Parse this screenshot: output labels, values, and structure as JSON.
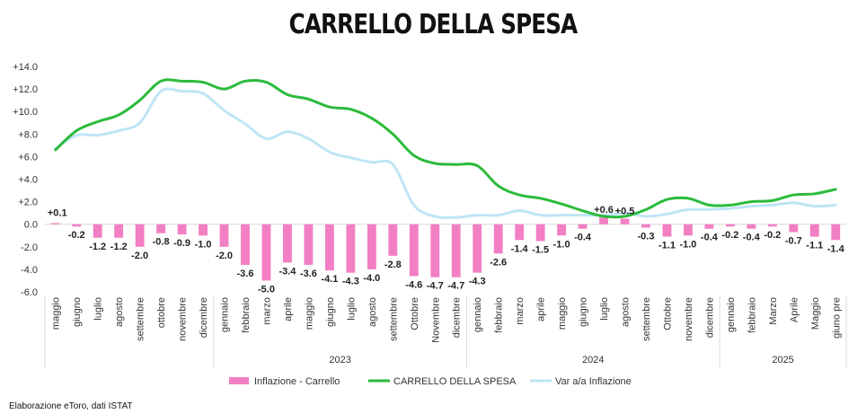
{
  "chart_data": {
    "type": "bar",
    "title": "CARRELLO DELLA SPESA",
    "categories": [
      "maggio",
      "giugno",
      "luglio",
      "agosto",
      "settembre",
      "ottobre",
      "novembre",
      "dicembre",
      "gennaio",
      "febbraio",
      "marzo",
      "aprile",
      "maggio",
      "giugno",
      "luglio",
      "agosto",
      "settembre",
      "Ottobre",
      "Novembre",
      "dicembre",
      "gennaio",
      "febbraio",
      "marzo",
      "aprile",
      "maggio",
      "giugno",
      "luglio",
      "agosto",
      "settembre",
      "Ottobre",
      "novembre",
      "dicembre",
      "gennaio",
      "febbraio",
      "Marzo",
      "Aprile",
      "Maggio",
      "giuno pre"
    ],
    "year_groups": [
      {
        "label": "",
        "start": 0,
        "end": 7
      },
      {
        "label": "2023",
        "start": 8,
        "end": 19
      },
      {
        "label": "2024",
        "start": 20,
        "end": 31
      },
      {
        "label": "2025",
        "start": 32,
        "end": 37
      }
    ],
    "ylim": [
      -6,
      14
    ],
    "yticks": [
      "+14.0",
      "+12.0",
      "+10.0",
      "+8.0",
      "+6.0",
      "+4.0",
      "+2.0",
      "0.0",
      "-2.0",
      "-4.0",
      "-6.0"
    ],
    "grid": false,
    "legend": "bottom",
    "series": [
      {
        "name": "Inflazione - Carrello",
        "kind": "bar",
        "color": "#f27fc4",
        "values": [
          0.1,
          -0.2,
          -1.2,
          -1.2,
          -2.0,
          -0.8,
          -0.9,
          -1.0,
          -2.0,
          -3.6,
          -5.0,
          -3.4,
          -3.6,
          -4.1,
          -4.3,
          -4.0,
          -2.8,
          -4.6,
          -4.7,
          -4.7,
          -4.3,
          -2.6,
          -1.4,
          -1.5,
          -1.0,
          -0.4,
          0.6,
          0.5,
          -0.3,
          -1.1,
          -1.0,
          -0.4,
          -0.2,
          -0.4,
          -0.2,
          -0.7,
          -1.1,
          -1.4
        ],
        "labels": [
          "+0.1",
          "-0.2",
          "-1.2",
          "-1.2",
          "-2.0",
          "-0.8",
          "-0.9",
          "-1.0",
          "-2.0",
          "-3.6",
          "-5.0",
          "-3.4",
          "-3.6",
          "-4.1",
          "-4.3",
          "-4.0",
          "-2.8",
          "-4.6",
          "-4.7",
          "-4.7",
          "-4.3",
          "-2.6",
          "-1.4",
          "-1.5",
          "-1.0",
          "-0.4",
          "+0.6",
          "+0.5",
          "-0.3",
          "-1.1",
          "-1.0",
          "-0.4",
          "-0.2",
          "-0.4",
          "-0.2",
          "-0.7",
          "-1.1",
          "-1.4"
        ]
      },
      {
        "name": "CARRELLO DELLA SPESA",
        "kind": "line",
        "color": "#2bbb3b",
        "values": [
          6.6,
          8.3,
          9.1,
          9.7,
          11.0,
          12.7,
          12.7,
          12.6,
          12.0,
          12.7,
          12.6,
          11.5,
          11.1,
          10.4,
          10.2,
          9.4,
          8.0,
          6.1,
          5.4,
          5.3,
          5.2,
          3.4,
          2.6,
          2.3,
          1.8,
          1.2,
          0.7,
          0.7,
          1.3,
          2.2,
          2.3,
          1.7,
          1.7,
          2.0,
          2.1,
          2.6,
          2.7,
          3.1
        ]
      },
      {
        "name": "Var a/a Inflazione",
        "kind": "line",
        "color": "#bfe5f5",
        "values": [
          6.7,
          7.9,
          7.9,
          8.3,
          9.0,
          11.8,
          11.8,
          11.6,
          10.1,
          8.9,
          7.6,
          8.2,
          7.6,
          6.4,
          5.9,
          5.5,
          5.3,
          1.7,
          0.7,
          0.6,
          0.8,
          0.8,
          1.2,
          0.8,
          0.8,
          0.8,
          0.8,
          1.0,
          0.7,
          0.9,
          1.3,
          1.3,
          1.4,
          1.6,
          1.7,
          1.9,
          1.6,
          1.7
        ]
      }
    ]
  },
  "source_note": "Elaborazione eToro, dati ISTAT"
}
